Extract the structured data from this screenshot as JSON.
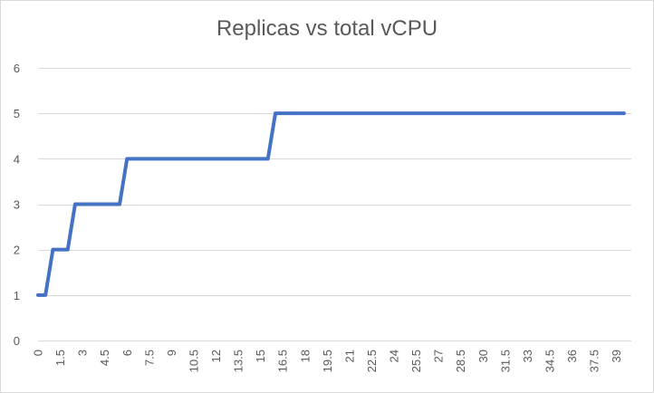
{
  "chart_data": {
    "type": "line",
    "title": "Replicas vs total vCPU",
    "xlabel": "",
    "ylabel": "",
    "xlim": [
      0,
      40
    ],
    "ylim": [
      0,
      6
    ],
    "y_ticks": [
      0,
      1,
      2,
      3,
      4,
      5,
      6
    ],
    "x_tick_labels": [
      "0",
      "1.5",
      "3",
      "4.5",
      "6",
      "7.5",
      "9",
      "10.5",
      "12",
      "13.5",
      "15",
      "16.5",
      "18",
      "19.5",
      "21",
      "22.5",
      "24",
      "25.5",
      "27",
      "28.5",
      "30",
      "31.5",
      "33",
      "34.5",
      "36",
      "37.5",
      "39"
    ],
    "grid": true,
    "legend": "none",
    "series": [
      {
        "color": "#4472c4",
        "x": [
          0,
          0.5,
          1,
          2,
          2.5,
          5.5,
          6,
          15.5,
          16,
          39.5
        ],
        "values": [
          1,
          1,
          2,
          2,
          3,
          3,
          4,
          4,
          5,
          5
        ]
      }
    ]
  }
}
